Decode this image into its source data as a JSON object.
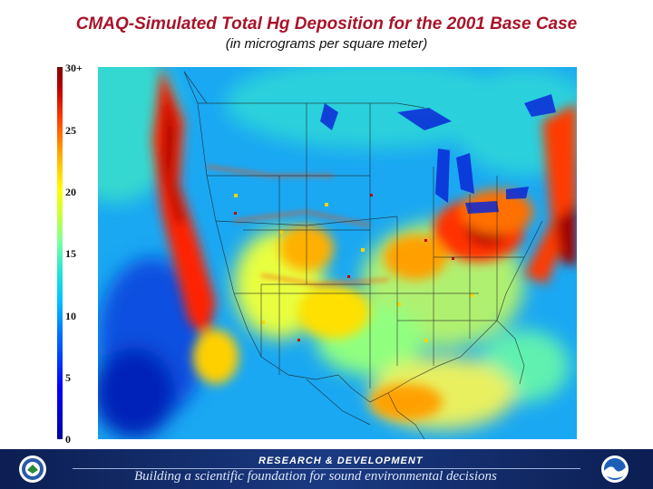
{
  "title": "CMAQ-Simulated Total Hg Deposition for the 2001 Base Case",
  "subtitle": "(in micrograms per square meter)",
  "legend": {
    "ticks": [
      "30+",
      "25",
      "20",
      "15",
      "10",
      "5",
      "0"
    ],
    "range": [
      0,
      30
    ],
    "colors": [
      "#0000a0",
      "#0000ff",
      "#0070ff",
      "#00c8ff",
      "#2fe6ce",
      "#7dffa0",
      "#c8ff40",
      "#ffff00",
      "#ffb000",
      "#ff4000",
      "#c00000",
      "#800000"
    ]
  },
  "footer": {
    "heading": "RESEARCH & DEVELOPMENT",
    "tagline": "Building a scientific foundation for sound environmental decisions",
    "left_logo": "epa-seal-icon",
    "right_logo": "noaa-logo-icon"
  }
}
